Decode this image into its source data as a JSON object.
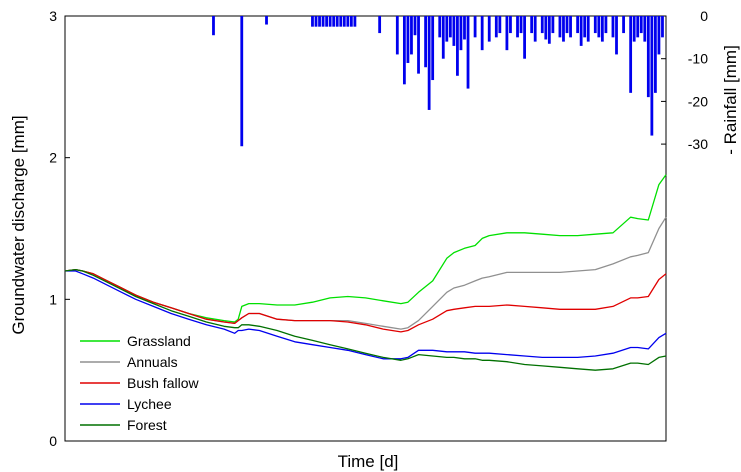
{
  "chart_data": {
    "type": "line",
    "xlabel": "Time [d]",
    "ylabel": "Groundwater discharge [mm]",
    "y2label": "- Rainfall [mm]",
    "ylim": [
      0,
      3
    ],
    "y2lim": [
      0,
      -70
    ],
    "yticks": [
      "0",
      "1",
      "2",
      "3"
    ],
    "y2ticks": [
      "0",
      "-10",
      "-20",
      "-30"
    ],
    "x_range": [
      0,
      170
    ],
    "legend_position": "bottom-left",
    "series": [
      {
        "name": "Grassland",
        "color": "#00e000",
        "x": [
          0,
          3,
          5,
          8,
          12,
          16,
          20,
          25,
          30,
          35,
          40,
          45,
          48,
          49,
          50,
          52,
          55,
          60,
          65,
          70,
          75,
          80,
          85,
          90,
          95,
          97,
          100,
          104,
          108,
          110,
          113,
          116,
          118,
          120,
          125,
          130,
          135,
          140,
          145,
          150,
          155,
          160,
          162,
          165,
          168,
          170
        ],
        "y": [
          1.2,
          1.21,
          1.2,
          1.18,
          1.13,
          1.08,
          1.03,
          0.98,
          0.94,
          0.9,
          0.87,
          0.85,
          0.84,
          0.86,
          0.95,
          0.97,
          0.97,
          0.96,
          0.96,
          0.98,
          1.01,
          1.02,
          1.01,
          0.99,
          0.97,
          0.98,
          1.05,
          1.13,
          1.29,
          1.33,
          1.36,
          1.38,
          1.43,
          1.45,
          1.47,
          1.47,
          1.46,
          1.45,
          1.45,
          1.46,
          1.47,
          1.58,
          1.57,
          1.56,
          1.81,
          1.88
        ]
      },
      {
        "name": "Annuals",
        "color": "#909090",
        "x": [
          0,
          3,
          5,
          8,
          12,
          16,
          20,
          25,
          30,
          35,
          40,
          45,
          48,
          49,
          50,
          52,
          55,
          60,
          65,
          70,
          75,
          80,
          85,
          90,
          95,
          97,
          100,
          104,
          108,
          110,
          113,
          116,
          118,
          120,
          125,
          130,
          135,
          140,
          145,
          150,
          155,
          160,
          162,
          165,
          168,
          170
        ],
        "y": [
          1.2,
          1.21,
          1.2,
          1.18,
          1.13,
          1.08,
          1.03,
          0.98,
          0.94,
          0.9,
          0.86,
          0.84,
          0.83,
          0.85,
          0.87,
          0.9,
          0.9,
          0.86,
          0.85,
          0.85,
          0.85,
          0.85,
          0.83,
          0.81,
          0.79,
          0.8,
          0.85,
          0.95,
          1.05,
          1.08,
          1.1,
          1.13,
          1.15,
          1.16,
          1.19,
          1.19,
          1.19,
          1.19,
          1.2,
          1.21,
          1.25,
          1.3,
          1.31,
          1.33,
          1.5,
          1.58
        ]
      },
      {
        "name": "Bush fallow",
        "color": "#e00000",
        "x": [
          0,
          3,
          5,
          8,
          12,
          16,
          20,
          25,
          30,
          35,
          40,
          45,
          48,
          49,
          50,
          52,
          55,
          60,
          65,
          70,
          75,
          80,
          85,
          90,
          95,
          97,
          100,
          104,
          108,
          110,
          113,
          116,
          118,
          120,
          125,
          130,
          135,
          140,
          145,
          150,
          155,
          160,
          162,
          165,
          168,
          170
        ],
        "y": [
          1.2,
          1.21,
          1.2,
          1.18,
          1.13,
          1.08,
          1.03,
          0.98,
          0.94,
          0.9,
          0.86,
          0.84,
          0.83,
          0.85,
          0.87,
          0.9,
          0.9,
          0.86,
          0.85,
          0.85,
          0.85,
          0.84,
          0.82,
          0.79,
          0.77,
          0.78,
          0.82,
          0.86,
          0.92,
          0.93,
          0.94,
          0.95,
          0.95,
          0.95,
          0.96,
          0.95,
          0.94,
          0.93,
          0.93,
          0.93,
          0.95,
          1.01,
          1.01,
          1.02,
          1.14,
          1.18
        ]
      },
      {
        "name": "Lychee",
        "color": "#0000ee",
        "x": [
          0,
          3,
          5,
          8,
          12,
          16,
          20,
          25,
          30,
          35,
          40,
          45,
          48,
          49,
          50,
          52,
          55,
          60,
          65,
          70,
          75,
          80,
          85,
          90,
          95,
          97,
          100,
          104,
          108,
          110,
          113,
          116,
          118,
          120,
          125,
          130,
          135,
          140,
          145,
          150,
          155,
          160,
          162,
          165,
          168,
          170
        ],
        "y": [
          1.2,
          1.2,
          1.18,
          1.15,
          1.1,
          1.05,
          1.0,
          0.95,
          0.9,
          0.86,
          0.82,
          0.79,
          0.76,
          0.78,
          0.78,
          0.79,
          0.78,
          0.74,
          0.7,
          0.68,
          0.66,
          0.64,
          0.61,
          0.58,
          0.58,
          0.59,
          0.64,
          0.64,
          0.63,
          0.63,
          0.63,
          0.62,
          0.62,
          0.62,
          0.61,
          0.6,
          0.59,
          0.59,
          0.59,
          0.6,
          0.62,
          0.66,
          0.66,
          0.65,
          0.73,
          0.76
        ]
      },
      {
        "name": "Forest",
        "color": "#007000",
        "x": [
          0,
          3,
          5,
          8,
          12,
          16,
          20,
          25,
          30,
          35,
          40,
          45,
          48,
          49,
          50,
          52,
          55,
          60,
          65,
          70,
          75,
          80,
          85,
          90,
          95,
          97,
          100,
          104,
          108,
          110,
          113,
          116,
          118,
          120,
          125,
          130,
          135,
          140,
          145,
          150,
          155,
          160,
          162,
          165,
          168,
          170
        ],
        "y": [
          1.2,
          1.21,
          1.2,
          1.17,
          1.12,
          1.07,
          1.02,
          0.97,
          0.92,
          0.88,
          0.84,
          0.81,
          0.8,
          0.8,
          0.82,
          0.82,
          0.81,
          0.78,
          0.74,
          0.71,
          0.68,
          0.65,
          0.62,
          0.59,
          0.57,
          0.58,
          0.61,
          0.6,
          0.59,
          0.59,
          0.58,
          0.58,
          0.57,
          0.57,
          0.56,
          0.54,
          0.53,
          0.52,
          0.51,
          0.5,
          0.51,
          0.55,
          0.55,
          0.54,
          0.59,
          0.6
        ]
      }
    ],
    "rainfall": {
      "name": "Rainfall",
      "color": "#0000ee",
      "x": [
        42,
        50,
        57,
        70,
        71,
        72,
        73,
        74,
        75,
        76,
        77,
        78,
        79,
        80,
        81,
        82,
        89,
        94,
        96,
        97,
        98,
        99,
        100,
        102,
        103,
        104,
        106,
        107,
        108,
        109,
        110,
        111,
        112,
        113,
        114,
        116,
        118,
        120,
        122,
        123,
        125,
        126,
        128,
        129,
        130,
        132,
        133,
        135,
        136,
        137,
        138,
        140,
        141,
        142,
        143,
        145,
        146,
        147,
        148,
        150,
        151,
        152,
        153,
        155,
        156,
        158,
        160,
        161,
        162,
        163,
        164,
        165,
        166,
        167,
        168,
        169
      ],
      "y": [
        -4.5,
        -30.5,
        -2,
        -2.5,
        -2.5,
        -2.5,
        -2.5,
        -2.5,
        -2.5,
        -2.5,
        -2.5,
        -2.5,
        -2.5,
        -2.5,
        -2.5,
        -2.5,
        -4,
        -9,
        -16,
        -11,
        -9,
        -4.5,
        -13.5,
        -12,
        -22,
        -15,
        -5,
        -10,
        -6,
        -5,
        -7,
        -14,
        -8,
        -5.5,
        -17,
        -5,
        -8,
        -6,
        -5,
        -4,
        -8,
        -4,
        -5,
        -4,
        -10,
        -4,
        -6,
        -4,
        -5.5,
        -6.5,
        -4,
        -5,
        -6,
        -4,
        -5,
        -4,
        -7,
        -5,
        -6,
        -4,
        -5,
        -6,
        -4,
        -5,
        -9,
        -4,
        -18,
        -6,
        -5,
        -4,
        -6,
        -19,
        -28,
        -18,
        -9,
        -5
      ]
    }
  }
}
